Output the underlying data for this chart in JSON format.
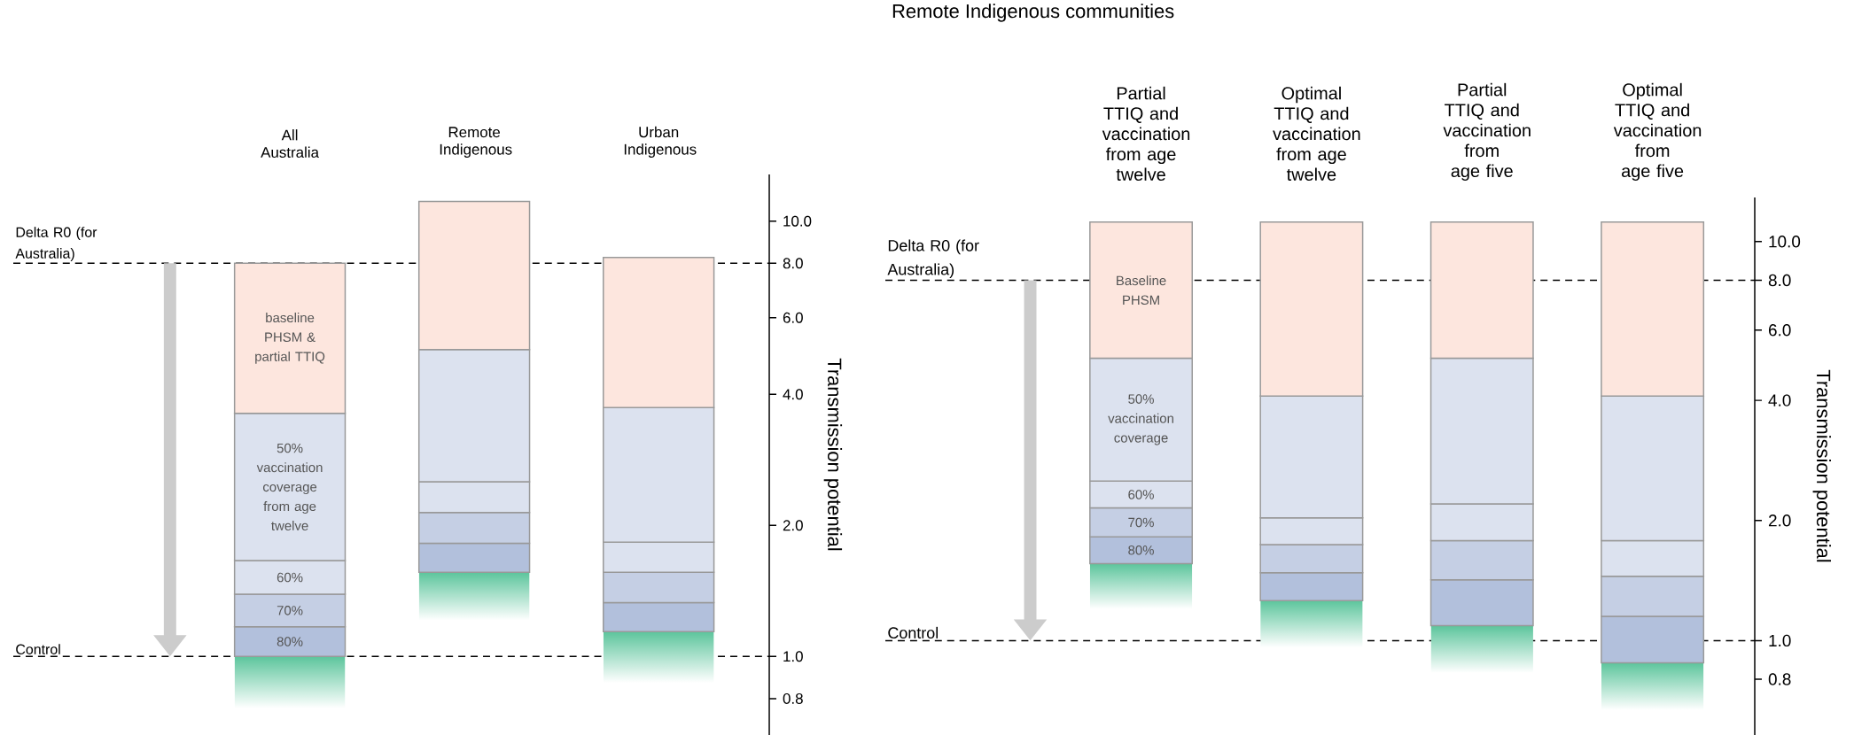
{
  "chart_data": [
    {
      "type": "bar",
      "log": "y",
      "ylabel": "Transmission potential",
      "categories": [
        "All Australia",
        "Remote Indigenous",
        "Urban Indigenous"
      ],
      "ylim": [
        0.66,
        12.8
      ],
      "yticks": [
        {
          "value": 0.8,
          "label": "0.8"
        },
        {
          "value": 1,
          "label": "1.0"
        },
        {
          "value": 2,
          "label": "2.0"
        },
        {
          "value": 4,
          "label": "4.0"
        },
        {
          "value": 6,
          "label": "6.0"
        },
        {
          "value": 8,
          "label": "8.0"
        },
        {
          "value": 10,
          "label": "10.0"
        }
      ],
      "ref_lines": [
        {
          "axis": "y",
          "value": 8,
          "label": "Delta R0 (for Australia)",
          "line_style": "dashed",
          "color": "#000000"
        },
        {
          "axis": "y",
          "value": 1,
          "label": "Control",
          "line_style": "dashed",
          "color": "#000000"
        }
      ],
      "series": [
        {
          "color": "#5cc59c",
          "base": [
            0.76,
            1.21,
            0.87
          ],
          "values": [
            0.24,
            0.35,
            0.27
          ]
        },
        {
          "name": "80%",
          "color": "#b2c0dc",
          "base": [
            1.0,
            1.56,
            1.14
          ],
          "values": [
            0.17,
            0.26,
            0.19
          ]
        },
        {
          "name": "70%",
          "color": "#c5cfe4",
          "base": [
            1.17,
            1.82,
            1.33
          ],
          "values": [
            0.22,
            0.32,
            0.23
          ]
        },
        {
          "name": "60%",
          "color": "#dce2ef",
          "base": [
            1.39,
            2.14,
            1.56
          ],
          "values": [
            0.27,
            0.38,
            0.27
          ]
        },
        {
          "name": "50% vaccination coverage from age twelve",
          "color": "#dce2ef",
          "base": [
            1.66,
            2.52,
            1.83
          ],
          "values": [
            1.96,
            2.55,
            1.9
          ]
        },
        {
          "name": "baseline PHSM & partial TTIQ",
          "color": "#fde6de",
          "base": [
            3.62,
            5.07,
            3.73
          ],
          "values": [
            4.38,
            6.03,
            4.52
          ]
        }
      ]
    },
    {
      "type": "bar",
      "log": "y",
      "title": "Remote Indigenous communities",
      "ylabel": "Transmission potential",
      "categories": [
        "Partial TTIQ and vaccination from age twelve",
        "Optimal TTIQ and vaccination from age twelve",
        "Partial TTIQ and vaccination from age five",
        "Optimal TTIQ and vaccination from age five"
      ],
      "ylim": [
        0.58,
        12.9
      ],
      "yticks": [
        {
          "value": 0.8,
          "label": "0.8"
        },
        {
          "value": 1,
          "label": "1.0"
        },
        {
          "value": 2,
          "label": "2.0"
        },
        {
          "value": 4,
          "label": "4.0"
        },
        {
          "value": 6,
          "label": "6.0"
        },
        {
          "value": 8,
          "label": "8.0"
        },
        {
          "value": 10,
          "label": "10.0"
        }
      ],
      "ref_lines": [
        {
          "axis": "y",
          "value": 8,
          "label": "Delta R0 (for Australia)",
          "line_style": "dashed",
          "color": "#000000"
        },
        {
          "axis": "y",
          "value": 1,
          "label": "Control",
          "line_style": "dashed",
          "color": "#000000"
        }
      ],
      "series": [
        {
          "color": "#5cc59c",
          "base": [
            1.2,
            0.96,
            0.83,
            0.67
          ],
          "values": [
            0.36,
            0.3,
            0.26,
            0.21
          ]
        },
        {
          "name": "80%",
          "color": "#b2c0dc",
          "base": [
            1.56,
            1.26,
            1.09,
            0.88
          ],
          "values": [
            0.26,
            0.22,
            0.33,
            0.27
          ]
        },
        {
          "name": "70%",
          "color": "#c5cfe4",
          "base": [
            1.82,
            1.48,
            1.42,
            1.15
          ],
          "values": [
            0.33,
            0.26,
            0.36,
            0.3
          ]
        },
        {
          "name": "60%",
          "color": "#dce2ef",
          "base": [
            2.15,
            1.74,
            1.78,
            1.45
          ],
          "values": [
            0.36,
            0.29,
            0.42,
            0.33
          ]
        },
        {
          "name": "50% vaccination coverage",
          "color": "#dce2ef",
          "base": [
            2.51,
            2.03,
            2.2,
            1.78
          ],
          "values": [
            2.59,
            2.07,
            2.9,
            2.32
          ]
        },
        {
          "name": "Baseline PHSM",
          "color": "#fde6de",
          "base": [
            5.1,
            4.1,
            5.1,
            4.1
          ],
          "values": [
            6.1,
            7.1,
            6.1,
            7.1
          ]
        }
      ]
    }
  ]
}
